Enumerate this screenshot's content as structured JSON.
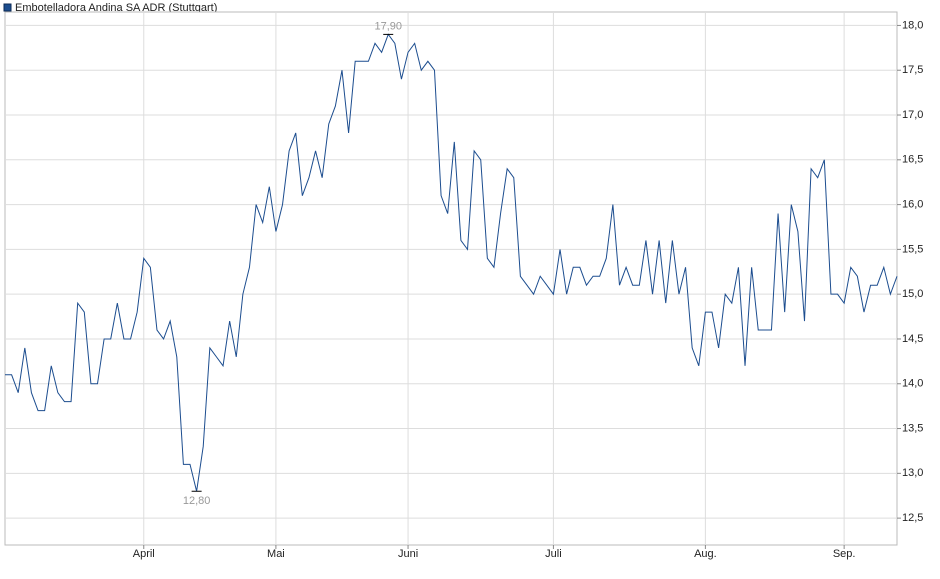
{
  "chart_data": {
    "type": "line",
    "legend": "Embotelladora Andina SA ADR (Stuttgart)",
    "x": [
      0,
      1,
      2,
      3,
      4,
      5,
      6,
      7,
      8,
      9,
      10,
      11,
      12,
      13,
      14,
      15,
      16,
      17,
      18,
      19,
      20,
      21,
      22,
      23,
      24,
      25,
      26,
      27,
      28,
      29,
      30,
      31,
      32,
      33,
      34,
      35,
      36,
      37,
      38,
      39,
      40,
      41,
      42,
      43,
      44,
      45,
      46,
      47,
      48,
      49,
      50,
      51,
      52,
      53,
      54,
      55,
      56,
      57,
      58,
      59,
      60,
      61,
      62,
      63,
      64,
      65,
      66,
      67,
      68,
      69,
      70,
      71,
      72,
      73,
      74,
      75,
      76,
      77,
      78,
      79,
      80,
      81,
      82,
      83,
      84,
      85,
      86,
      87,
      88,
      89,
      90,
      91,
      92,
      93,
      94,
      95,
      96,
      97,
      98,
      99,
      100,
      101,
      102,
      103,
      104,
      105,
      106,
      107,
      108,
      109,
      110,
      111,
      112,
      113,
      114,
      115,
      116,
      117,
      118,
      119,
      120,
      121,
      122,
      123,
      124,
      125,
      126,
      127,
      128,
      129,
      130,
      131,
      132,
      133,
      134,
      135
    ],
    "series": [
      {
        "name": "Embotelladora Andina SA ADR (Stuttgart)",
        "color": "#1c4d8f",
        "values": [
          14.1,
          14.1,
          13.9,
          14.4,
          13.9,
          13.7,
          13.7,
          14.2,
          13.9,
          13.8,
          13.8,
          14.9,
          14.8,
          14.0,
          14.0,
          14.5,
          14.5,
          14.9,
          14.5,
          14.5,
          14.8,
          15.4,
          15.3,
          14.6,
          14.5,
          14.7,
          14.3,
          13.1,
          13.1,
          12.8,
          13.3,
          14.4,
          14.3,
          14.2,
          14.7,
          14.3,
          15.0,
          15.3,
          16.0,
          15.8,
          16.2,
          15.7,
          16.0,
          16.6,
          16.8,
          16.1,
          16.3,
          16.6,
          16.3,
          16.9,
          17.1,
          17.5,
          16.8,
          17.6,
          17.6,
          17.6,
          17.8,
          17.7,
          17.9,
          17.8,
          17.4,
          17.7,
          17.8,
          17.5,
          17.6,
          17.5,
          16.1,
          15.9,
          16.7,
          15.6,
          15.5,
          16.6,
          16.5,
          15.4,
          15.3,
          15.9,
          16.4,
          16.3,
          15.2,
          15.1,
          15.0,
          15.2,
          15.1,
          15.0,
          15.5,
          15.0,
          15.3,
          15.3,
          15.1,
          15.2,
          15.2,
          15.4,
          16.0,
          15.1,
          15.3,
          15.1,
          15.1,
          15.6,
          15.0,
          15.6,
          14.9,
          15.6,
          15.0,
          15.3,
          14.4,
          14.2,
          14.8,
          14.8,
          14.4,
          15.0,
          14.9,
          15.3,
          14.2,
          15.3,
          14.6,
          14.6,
          14.6,
          15.9,
          14.8,
          16.0,
          15.7,
          14.7,
          16.4,
          16.3,
          16.5,
          15.0,
          15.0,
          14.9,
          15.3,
          15.2,
          14.8,
          15.1,
          15.1,
          15.3,
          15.0,
          15.2
        ]
      }
    ],
    "xlim": [
      0,
      135
    ],
    "xticks": [
      {
        "value": 21,
        "label": "April"
      },
      {
        "value": 41,
        "label": "Mai"
      },
      {
        "value": 61,
        "label": "Juni"
      },
      {
        "value": 83,
        "label": "Juli"
      },
      {
        "value": 106,
        "label": "Aug."
      },
      {
        "value": 127,
        "label": "Sep."
      }
    ],
    "ylim": [
      12.2,
      18.15
    ],
    "yticks": [
      {
        "value": 12.5,
        "label": "12,5"
      },
      {
        "value": 13,
        "label": "13,0"
      },
      {
        "value": 13.5,
        "label": "13,5"
      },
      {
        "value": 14,
        "label": "14,0"
      },
      {
        "value": 14.5,
        "label": "14,5"
      },
      {
        "value": 15,
        "label": "15,0"
      },
      {
        "value": 15.5,
        "label": "15,5"
      },
      {
        "value": 16,
        "label": "16,0"
      },
      {
        "value": 16.5,
        "label": "16,5"
      },
      {
        "value": 17,
        "label": "17,0"
      },
      {
        "value": 17.5,
        "label": "17,5"
      },
      {
        "value": 18,
        "label": "18,0"
      }
    ],
    "annotations": [
      {
        "x": 58,
        "value": 17.9,
        "label": "17,90"
      },
      {
        "x": 29,
        "value": 12.8,
        "label": "12,80"
      }
    ],
    "grid": true
  }
}
